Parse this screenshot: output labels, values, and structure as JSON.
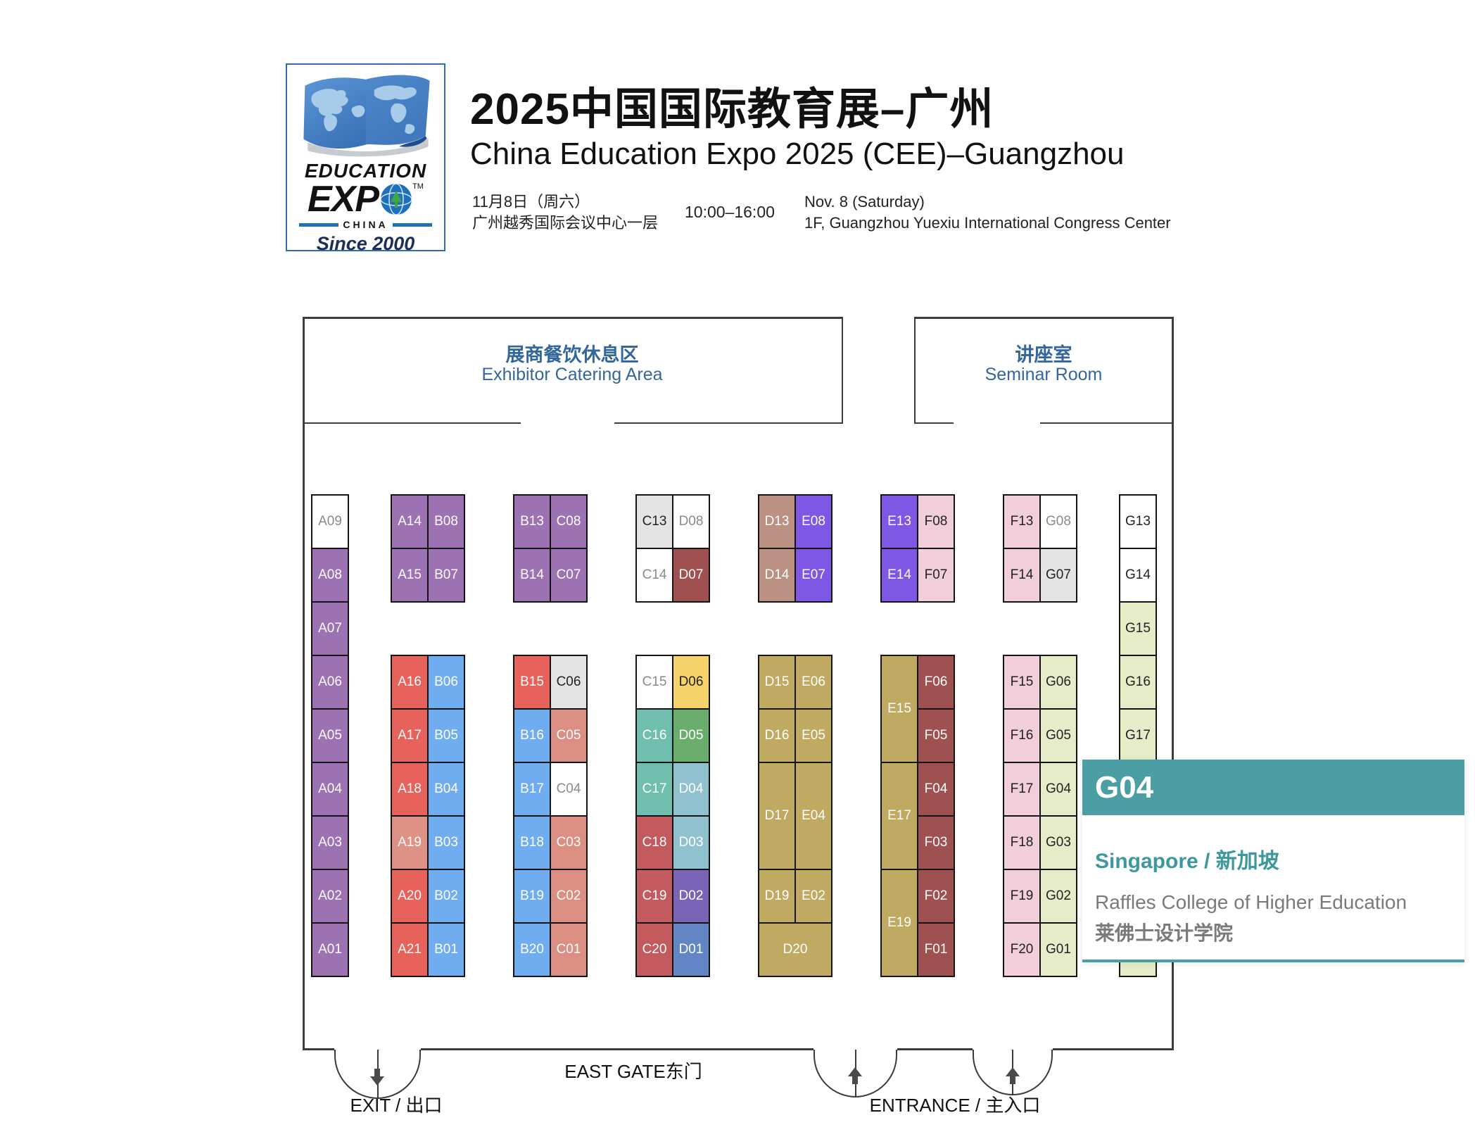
{
  "header": {
    "logo": {
      "education": "EDUCATION",
      "expo": "EXP",
      "tm": "TM",
      "china": "CHINA",
      "since": "Since 2000"
    },
    "title_zh": "2025中国国际教育展–广州",
    "title_en": "China Education Expo 2025 (CEE)–Guangzhou",
    "date_zh": "11月8日（周六）",
    "venue_zh": "广州越秀国际会议中心一层",
    "time": "10:00–16:00",
    "date_en": "Nov. 8 (Saturday)",
    "venue_en": "1F, Guangzhou Yuexiu International Congress Center"
  },
  "rooms": {
    "catering_zh": "展商餐饮休息区",
    "catering_en": "Exhibitor Catering Area",
    "seminar_zh": "讲座室",
    "seminar_en": "Seminar Room"
  },
  "gates": {
    "east_gate": "EAST GATE东门",
    "exit": "EXIT / 出口",
    "entrance": "ENTRANCE / 主入口"
  },
  "popup": {
    "booth": "G04",
    "country": "Singapore / 新加坡",
    "exhibitor_en": "Raffles College of Higher Education",
    "exhibitor_zh": "莱佛士设计学院",
    "accent": "#4A9EA4"
  },
  "palette": {
    "purple": "#9C72B3",
    "red": "#E6625B",
    "lightred": "#DE9185",
    "blue": "#6FACF0",
    "salmon": "#DC8E82",
    "grayBox": "#E4E4E4",
    "whiteBox": "#FFFFFF",
    "maroon": "#9E5150",
    "tan": "#BA9182",
    "violet": "#7F57E5",
    "pink": "#F2CEDA",
    "khaki": "#C0A960",
    "yellow": "#F6D26B",
    "teal": "#70BEAD",
    "green": "#69AE6D",
    "steel": "#8FC2CE",
    "brick": "#C35A5E",
    "dviolet": "#7A64B6",
    "dblue": "#6186C3",
    "palegreen": "#E6ECC8",
    "fg": {
      "white": "#FFFFFF",
      "dark": "#222222",
      "gray": "#8A8A8A"
    }
  },
  "booths": [
    {
      "id": "A09",
      "col": "A",
      "row": 1,
      "color": "whiteBox",
      "fg": "gray"
    },
    {
      "id": "A08",
      "col": "A",
      "row": 2,
      "color": "purple",
      "fg": "white"
    },
    {
      "id": "A07",
      "col": "A",
      "row": 3,
      "color": "purple",
      "fg": "white"
    },
    {
      "id": "A06",
      "col": "A",
      "row": 4,
      "color": "purple",
      "fg": "white"
    },
    {
      "id": "A05",
      "col": "A",
      "row": 5,
      "color": "purple",
      "fg": "white"
    },
    {
      "id": "A04",
      "col": "A",
      "row": 6,
      "color": "purple",
      "fg": "white"
    },
    {
      "id": "A03",
      "col": "A",
      "row": 7,
      "color": "purple",
      "fg": "white"
    },
    {
      "id": "A02",
      "col": "A",
      "row": 8,
      "color": "purple",
      "fg": "white"
    },
    {
      "id": "A01",
      "col": "A",
      "row": 9,
      "color": "purple",
      "fg": "white"
    },
    {
      "id": "A14",
      "col": "p1a",
      "row": 1,
      "color": "purple",
      "fg": "white"
    },
    {
      "id": "B08",
      "col": "p1b",
      "row": 1,
      "color": "purple",
      "fg": "white"
    },
    {
      "id": "A15",
      "col": "p1a",
      "row": 2,
      "color": "purple",
      "fg": "white"
    },
    {
      "id": "B07",
      "col": "p1b",
      "row": 2,
      "color": "purple",
      "fg": "white"
    },
    {
      "id": "A16",
      "col": "p1a",
      "row": 4,
      "color": "red",
      "fg": "white"
    },
    {
      "id": "B06",
      "col": "p1b",
      "row": 4,
      "color": "blue",
      "fg": "white"
    },
    {
      "id": "A17",
      "col": "p1a",
      "row": 5,
      "color": "red",
      "fg": "white"
    },
    {
      "id": "B05",
      "col": "p1b",
      "row": 5,
      "color": "blue",
      "fg": "white"
    },
    {
      "id": "A18",
      "col": "p1a",
      "row": 6,
      "color": "red",
      "fg": "white"
    },
    {
      "id": "B04",
      "col": "p1b",
      "row": 6,
      "color": "blue",
      "fg": "white"
    },
    {
      "id": "A19",
      "col": "p1a",
      "row": 7,
      "color": "lightred",
      "fg": "white"
    },
    {
      "id": "B03",
      "col": "p1b",
      "row": 7,
      "color": "blue",
      "fg": "white"
    },
    {
      "id": "A20",
      "col": "p1a",
      "row": 8,
      "color": "red",
      "fg": "white"
    },
    {
      "id": "B02",
      "col": "p1b",
      "row": 8,
      "color": "blue",
      "fg": "white"
    },
    {
      "id": "A21",
      "col": "p1a",
      "row": 9,
      "color": "red",
      "fg": "white"
    },
    {
      "id": "B01",
      "col": "p1b",
      "row": 9,
      "color": "blue",
      "fg": "white"
    },
    {
      "id": "B13",
      "col": "p2a",
      "row": 1,
      "color": "purple",
      "fg": "white"
    },
    {
      "id": "C08",
      "col": "p2b",
      "row": 1,
      "color": "purple",
      "fg": "white"
    },
    {
      "id": "B14",
      "col": "p2a",
      "row": 2,
      "color": "purple",
      "fg": "white"
    },
    {
      "id": "C07",
      "col": "p2b",
      "row": 2,
      "color": "purple",
      "fg": "white"
    },
    {
      "id": "B15",
      "col": "p2a",
      "row": 4,
      "color": "red",
      "fg": "white"
    },
    {
      "id": "C06",
      "col": "p2b",
      "row": 4,
      "color": "grayBox",
      "fg": "dark"
    },
    {
      "id": "B16",
      "col": "p2a",
      "row": 5,
      "color": "blue",
      "fg": "white"
    },
    {
      "id": "C05",
      "col": "p2b",
      "row": 5,
      "color": "salmon",
      "fg": "white"
    },
    {
      "id": "B17",
      "col": "p2a",
      "row": 6,
      "color": "blue",
      "fg": "white"
    },
    {
      "id": "C04",
      "col": "p2b",
      "row": 6,
      "color": "whiteBox",
      "fg": "gray"
    },
    {
      "id": "B18",
      "col": "p2a",
      "row": 7,
      "color": "blue",
      "fg": "white"
    },
    {
      "id": "C03",
      "col": "p2b",
      "row": 7,
      "color": "salmon",
      "fg": "white"
    },
    {
      "id": "B19",
      "col": "p2a",
      "row": 8,
      "color": "blue",
      "fg": "white"
    },
    {
      "id": "C02",
      "col": "p2b",
      "row": 8,
      "color": "salmon",
      "fg": "white"
    },
    {
      "id": "B20",
      "col": "p2a",
      "row": 9,
      "color": "blue",
      "fg": "white"
    },
    {
      "id": "C01",
      "col": "p2b",
      "row": 9,
      "color": "salmon",
      "fg": "white"
    },
    {
      "id": "C13",
      "col": "p3a",
      "row": 1,
      "color": "grayBox",
      "fg": "dark"
    },
    {
      "id": "D08",
      "col": "p3b",
      "row": 1,
      "color": "whiteBox",
      "fg": "gray"
    },
    {
      "id": "C14",
      "col": "p3a",
      "row": 2,
      "color": "whiteBox",
      "fg": "gray"
    },
    {
      "id": "D07",
      "col": "p3b",
      "row": 2,
      "color": "maroon",
      "fg": "white"
    },
    {
      "id": "C15",
      "col": "p3a",
      "row": 4,
      "color": "whiteBox",
      "fg": "gray"
    },
    {
      "id": "D06",
      "col": "p3b",
      "row": 4,
      "color": "yellow",
      "fg": "dark"
    },
    {
      "id": "C16",
      "col": "p3a",
      "row": 5,
      "color": "teal",
      "fg": "white"
    },
    {
      "id": "D05",
      "col": "p3b",
      "row": 5,
      "color": "green",
      "fg": "white"
    },
    {
      "id": "C17",
      "col": "p3a",
      "row": 6,
      "color": "teal",
      "fg": "white"
    },
    {
      "id": "D04",
      "col": "p3b",
      "row": 6,
      "color": "steel",
      "fg": "white"
    },
    {
      "id": "C18",
      "col": "p3a",
      "row": 7,
      "color": "brick",
      "fg": "white"
    },
    {
      "id": "D03",
      "col": "p3b",
      "row": 7,
      "color": "steel",
      "fg": "white"
    },
    {
      "id": "C19",
      "col": "p3a",
      "row": 8,
      "color": "brick",
      "fg": "white"
    },
    {
      "id": "D02",
      "col": "p3b",
      "row": 8,
      "color": "dviolet",
      "fg": "white"
    },
    {
      "id": "C20",
      "col": "p3a",
      "row": 9,
      "color": "brick",
      "fg": "white"
    },
    {
      "id": "D01",
      "col": "p3b",
      "row": 9,
      "color": "dblue",
      "fg": "white"
    },
    {
      "id": "D13",
      "col": "p4a",
      "row": 1,
      "color": "tan",
      "fg": "white"
    },
    {
      "id": "E08",
      "col": "p4b",
      "row": 1,
      "color": "violet",
      "fg": "white"
    },
    {
      "id": "D14",
      "col": "p4a",
      "row": 2,
      "color": "tan",
      "fg": "white"
    },
    {
      "id": "E07",
      "col": "p4b",
      "row": 2,
      "color": "violet",
      "fg": "white"
    },
    {
      "id": "D15",
      "col": "p4a",
      "row": 4,
      "color": "khaki",
      "fg": "white"
    },
    {
      "id": "E06",
      "col": "p4b",
      "row": 4,
      "color": "khaki",
      "fg": "white"
    },
    {
      "id": "D16",
      "col": "p4a",
      "row": 5,
      "color": "khaki",
      "fg": "white"
    },
    {
      "id": "E05",
      "col": "p4b",
      "row": 5,
      "color": "khaki",
      "fg": "white"
    },
    {
      "id": "D17",
      "col": "p4a",
      "row": 6,
      "rows": 2,
      "color": "khaki",
      "fg": "white"
    },
    {
      "id": "E04",
      "col": "p4b",
      "row": 6,
      "rows": 2,
      "color": "khaki",
      "fg": "white"
    },
    {
      "id": "D19",
      "col": "p4a",
      "row": 8,
      "color": "khaki",
      "fg": "white"
    },
    {
      "id": "E02",
      "col": "p4b",
      "row": 8,
      "color": "khaki",
      "fg": "white"
    },
    {
      "id": "D20",
      "col": "p4a",
      "row": 9,
      "cols": 2,
      "color": "khaki",
      "fg": "white"
    },
    {
      "id": "E13",
      "col": "p5a",
      "row": 1,
      "color": "violet",
      "fg": "white"
    },
    {
      "id": "F08",
      "col": "p5b",
      "row": 1,
      "color": "pink",
      "fg": "dark"
    },
    {
      "id": "E14",
      "col": "p5a",
      "row": 2,
      "color": "violet",
      "fg": "white"
    },
    {
      "id": "F07",
      "col": "p5b",
      "row": 2,
      "color": "pink",
      "fg": "dark"
    },
    {
      "id": "E15",
      "col": "p5a",
      "row": 4,
      "rows": 2,
      "color": "khaki",
      "fg": "white"
    },
    {
      "id": "F06",
      "col": "p5b",
      "row": 4,
      "color": "maroon",
      "fg": "white"
    },
    {
      "id": "F05",
      "col": "p5b",
      "row": 5,
      "color": "maroon",
      "fg": "white"
    },
    {
      "id": "E17",
      "col": "p5a",
      "row": 6,
      "rows": 2,
      "color": "khaki",
      "fg": "white"
    },
    {
      "id": "F04",
      "col": "p5b",
      "row": 6,
      "color": "maroon",
      "fg": "white"
    },
    {
      "id": "F03",
      "col": "p5b",
      "row": 7,
      "color": "maroon",
      "fg": "white"
    },
    {
      "id": "E19",
      "col": "p5a",
      "row": 8,
      "rows": 2,
      "color": "khaki",
      "fg": "white"
    },
    {
      "id": "F02",
      "col": "p5b",
      "row": 8,
      "color": "maroon",
      "fg": "white"
    },
    {
      "id": "F01",
      "col": "p5b",
      "row": 9,
      "color": "maroon",
      "fg": "white"
    },
    {
      "id": "F13",
      "col": "p6a",
      "row": 1,
      "color": "pink",
      "fg": "dark"
    },
    {
      "id": "G08",
      "col": "p6b",
      "row": 1,
      "color": "whiteBox",
      "fg": "gray"
    },
    {
      "id": "F14",
      "col": "p6a",
      "row": 2,
      "color": "pink",
      "fg": "dark"
    },
    {
      "id": "G07",
      "col": "p6b",
      "row": 2,
      "color": "grayBox",
      "fg": "dark"
    },
    {
      "id": "F15",
      "col": "p6a",
      "row": 4,
      "color": "pink",
      "fg": "dark"
    },
    {
      "id": "G06",
      "col": "p6b",
      "row": 4,
      "color": "palegreen",
      "fg": "dark"
    },
    {
      "id": "F16",
      "col": "p6a",
      "row": 5,
      "color": "pink",
      "fg": "dark"
    },
    {
      "id": "G05",
      "col": "p6b",
      "row": 5,
      "color": "palegreen",
      "fg": "dark"
    },
    {
      "id": "F17",
      "col": "p6a",
      "row": 6,
      "color": "pink",
      "fg": "dark"
    },
    {
      "id": "G04",
      "col": "p6b",
      "row": 6,
      "color": "palegreen",
      "fg": "dark"
    },
    {
      "id": "F18",
      "col": "p6a",
      "row": 7,
      "color": "pink",
      "fg": "dark"
    },
    {
      "id": "G03",
      "col": "p6b",
      "row": 7,
      "color": "palegreen",
      "fg": "dark"
    },
    {
      "id": "F19",
      "col": "p6a",
      "row": 8,
      "color": "pink",
      "fg": "dark"
    },
    {
      "id": "G02",
      "col": "p6b",
      "row": 8,
      "color": "palegreen",
      "fg": "dark"
    },
    {
      "id": "F20",
      "col": "p6a",
      "row": 9,
      "color": "pink",
      "fg": "dark"
    },
    {
      "id": "G01",
      "col": "p6b",
      "row": 9,
      "color": "palegreen",
      "fg": "dark"
    },
    {
      "id": "G13",
      "col": "G",
      "row": 1,
      "color": "whiteBox",
      "fg": "dark"
    },
    {
      "id": "G14",
      "col": "G",
      "row": 2,
      "color": "whiteBox",
      "fg": "dark"
    },
    {
      "id": "G15",
      "col": "G",
      "row": 3,
      "color": "palegreen",
      "fg": "dark"
    },
    {
      "id": "G16",
      "col": "G",
      "row": 4,
      "color": "palegreen",
      "fg": "dark"
    },
    {
      "id": "G17",
      "col": "G",
      "row": 5,
      "color": "palegreen",
      "fg": "dark"
    },
    {
      "id": "",
      "col": "G",
      "row": 6,
      "rows": 4,
      "color": "palegreen",
      "fg": "dark"
    }
  ]
}
